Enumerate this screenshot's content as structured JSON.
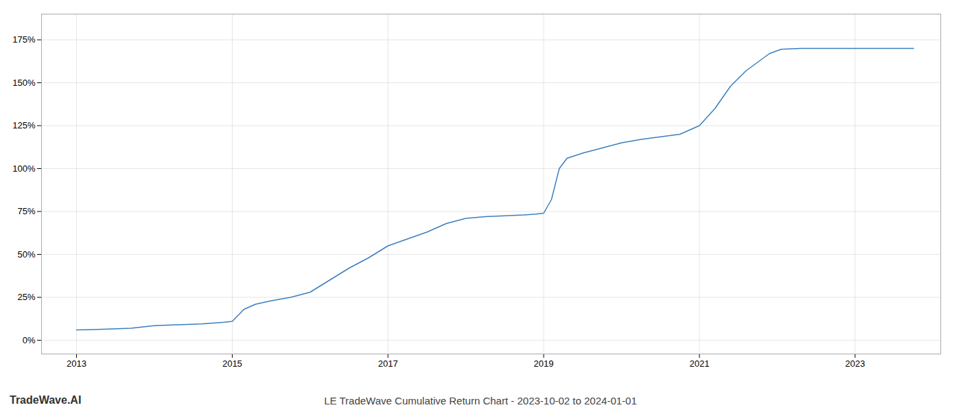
{
  "chart_data": {
    "type": "line",
    "title": "LE TradeWave Cumulative Return Chart - 2023-10-02 to 2024-01-01",
    "annotations": [
      "TradeWave.AI"
    ],
    "color": "#3a7ebf",
    "grid": true,
    "xlim": [
      2012.55,
      2024.1
    ],
    "xticks": [
      2013,
      2015,
      2017,
      2019,
      2021,
      2023
    ],
    "ylim": [
      -8,
      190
    ],
    "yticks": [
      {
        "value": 0,
        "label": "0%"
      },
      {
        "value": 25,
        "label": "25%"
      },
      {
        "value": 50,
        "label": "50%"
      },
      {
        "value": 75,
        "label": "75%"
      },
      {
        "value": 100,
        "label": "100%"
      },
      {
        "value": 125,
        "label": "125%"
      },
      {
        "value": 150,
        "label": "150%"
      },
      {
        "value": 175,
        "label": "175%"
      }
    ],
    "x": [
      2013.0,
      2013.2,
      2013.4,
      2013.7,
      2014.0,
      2014.3,
      2014.6,
      2014.9,
      2015.0,
      2015.15,
      2015.3,
      2015.5,
      2015.75,
      2016.0,
      2016.25,
      2016.5,
      2016.75,
      2017.0,
      2017.25,
      2017.5,
      2017.75,
      2018.0,
      2018.25,
      2018.5,
      2018.75,
      2018.9,
      2019.0,
      2019.1,
      2019.2,
      2019.3,
      2019.5,
      2019.75,
      2020.0,
      2020.25,
      2020.5,
      2020.75,
      2021.0,
      2021.2,
      2021.4,
      2021.6,
      2021.75,
      2021.9,
      2022.05,
      2022.3,
      2022.6,
      2022.9,
      2023.0,
      2023.5,
      2023.75
    ],
    "values": [
      6.0,
      6.2,
      6.5,
      7.0,
      8.5,
      9.0,
      9.5,
      10.5,
      11.0,
      18.0,
      21.0,
      23.0,
      25.0,
      28.0,
      35.0,
      42.0,
      48.0,
      55.0,
      59.0,
      63.0,
      68.0,
      71.0,
      72.0,
      72.5,
      73.0,
      73.5,
      74.0,
      82.0,
      100.0,
      106.0,
      109.0,
      112.0,
      115.0,
      117.0,
      118.5,
      120.0,
      125.0,
      135.0,
      148.0,
      157.0,
      162.0,
      167.0,
      169.5,
      170.0,
      170.0,
      170.0,
      170.0,
      170.0,
      170.0
    ]
  }
}
